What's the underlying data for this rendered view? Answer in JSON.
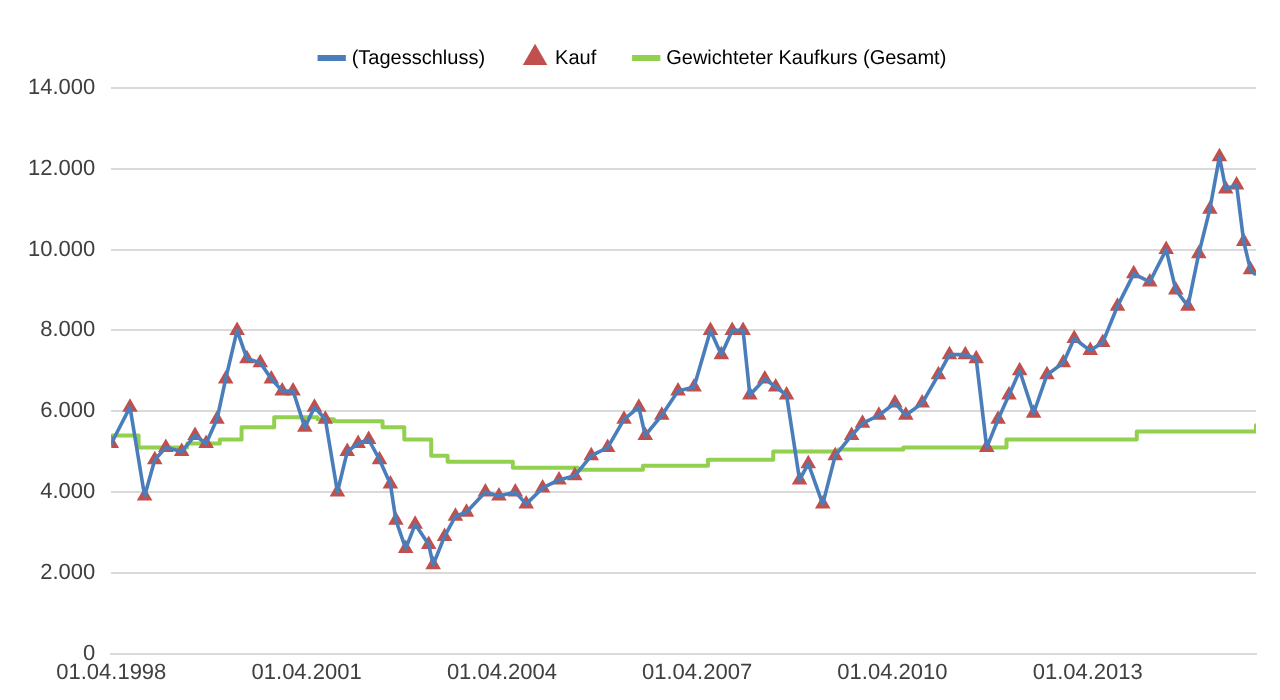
{
  "chart_data": {
    "type": "line",
    "legend": "top",
    "grid": "y",
    "line_style": "solid",
    "x": [
      "1998-04-01",
      "1998-07-15",
      "1998-10-05",
      "1998-12-01",
      "1999-02-01",
      "1999-05-01",
      "1999-07-15",
      "1999-09-15",
      "1999-11-15",
      "2000-01-03",
      "2000-03-07",
      "2000-05-01",
      "2000-07-15",
      "2000-09-15",
      "2000-11-15",
      "2001-01-15",
      "2001-03-22",
      "2001-05-15",
      "2001-07-15",
      "2001-09-21",
      "2001-11-15",
      "2002-01-15",
      "2002-03-15",
      "2002-05-15",
      "2002-07-15",
      "2002-08-15",
      "2002-10-09",
      "2002-12-01",
      "2003-02-15",
      "2003-03-12",
      "2003-05-15",
      "2003-07-15",
      "2003-09-15",
      "2003-12-30",
      "2004-03-15",
      "2004-06-15",
      "2004-08-15",
      "2004-11-15",
      "2005-02-15",
      "2005-05-15",
      "2005-08-15",
      "2005-11-15",
      "2006-02-15",
      "2006-05-09",
      "2006-06-14",
      "2006-09-15",
      "2006-12-15",
      "2007-03-15",
      "2007-06-15",
      "2007-08-15",
      "2007-10-15",
      "2007-12-15",
      "2008-01-22",
      "2008-04-15",
      "2008-06-15",
      "2008-08-15",
      "2008-10-27",
      "2008-12-15",
      "2009-03-06",
      "2009-05-15",
      "2009-08-15",
      "2009-10-15",
      "2010-01-15",
      "2010-04-15",
      "2010-06-15",
      "2010-09-15",
      "2010-12-15",
      "2011-02-15",
      "2011-05-15",
      "2011-07-15",
      "2011-09-12",
      "2011-11-15",
      "2012-01-15",
      "2012-03-15",
      "2012-06-01",
      "2012-08-15",
      "2012-11-15",
      "2013-01-15",
      "2013-04-15",
      "2013-06-24",
      "2013-09-15",
      "2013-12-15",
      "2014-03-15",
      "2014-06-15",
      "2014-08-08",
      "2014-10-15",
      "2014-12-15",
      "2015-02-15",
      "2015-04-10",
      "2015-05-15",
      "2015-07-15",
      "2015-08-24",
      "2015-10-01",
      "2015-10-25"
    ],
    "series": [
      {
        "name": "(Tagesschluss)",
        "color": "#4a7ebb",
        "marker": "none",
        "values": [
          5200,
          6100,
          3900,
          4800,
          5100,
          5000,
          5400,
          5200,
          5800,
          6800,
          8000,
          7300,
          7200,
          6800,
          6500,
          6500,
          5600,
          6100,
          5800,
          4000,
          5000,
          5200,
          5300,
          4800,
          4200,
          3300,
          2600,
          3200,
          2700,
          2200,
          2900,
          3400,
          3500,
          4000,
          3900,
          4000,
          3700,
          4100,
          4300,
          4400,
          4900,
          5100,
          5800,
          6100,
          5400,
          5900,
          6500,
          6600,
          8000,
          7400,
          8000,
          8000,
          6400,
          6800,
          6600,
          6400,
          4300,
          4700,
          3700,
          4900,
          5400,
          5700,
          5900,
          6200,
          5900,
          6200,
          6900,
          7400,
          7400,
          7300,
          5100,
          5800,
          6400,
          7000,
          5950,
          6900,
          7200,
          7800,
          7500,
          7700,
          8600,
          9400,
          9200,
          10000,
          9000,
          8600,
          9900,
          11000,
          12300,
          11500,
          11600,
          10200,
          9500,
          9400
        ]
      },
      {
        "name": "Kauf",
        "type": "scatter",
        "color": "#c0504d",
        "marker": "triangle",
        "values": [
          5200,
          6100,
          3900,
          4800,
          5100,
          5000,
          5400,
          5200,
          5800,
          6800,
          8000,
          7300,
          7200,
          6800,
          6500,
          6500,
          5600,
          6100,
          5800,
          4000,
          5000,
          5200,
          5300,
          4800,
          4200,
          3300,
          2600,
          3200,
          2700,
          2200,
          2900,
          3400,
          3500,
          4000,
          3900,
          4000,
          3700,
          4100,
          4300,
          4400,
          4900,
          5100,
          5800,
          6100,
          5400,
          5900,
          6500,
          6600,
          8000,
          7400,
          8000,
          8000,
          6400,
          6800,
          6600,
          6400,
          4300,
          4700,
          3700,
          4900,
          5400,
          5700,
          5900,
          6200,
          5900,
          6200,
          6900,
          7400,
          7400,
          7300,
          5100,
          5800,
          6400,
          7000,
          5950,
          6900,
          7200,
          7800,
          7500,
          7700,
          8600,
          9400,
          9200,
          10000,
          9000,
          8600,
          9900,
          11000,
          12300,
          11500,
          11600,
          10200,
          9500,
          null
        ]
      },
      {
        "name": "Gewichteter Kaufkurs (Gesamt)",
        "type": "step",
        "color": "#92d050",
        "marker": "none",
        "x": [
          "1998-04-01",
          "1998-09-01",
          "1999-06-01",
          "1999-12-01",
          "2000-04-01",
          "2000-10-01",
          "2001-06-01",
          "2001-09-01",
          "2002-06-01",
          "2002-10-01",
          "2003-03-01",
          "2003-06-01",
          "2004-06-01",
          "2005-06-01",
          "2006-06-01",
          "2007-06-01",
          "2008-06-01",
          "2009-06-01",
          "2010-06-01",
          "2012-01-01",
          "2014-01-01",
          "2015-11-01"
        ],
        "values": [
          5400,
          5100,
          5200,
          5300,
          5600,
          5850,
          5800,
          5750,
          5600,
          5300,
          4900,
          4750,
          4600,
          4550,
          4650,
          4800,
          5000,
          5050,
          5100,
          5300,
          5500,
          5650
        ]
      }
    ],
    "xlim": [
      "1998-04-01",
      "2015-11-01"
    ],
    "xticks": [
      {
        "value": "1998-04-01",
        "label": "01.04.1998"
      },
      {
        "value": "2001-04-01",
        "label": "01.04.2001"
      },
      {
        "value": "2004-04-01",
        "label": "01.04.2004"
      },
      {
        "value": "2007-04-01",
        "label": "01.04.2007"
      },
      {
        "value": "2010-04-01",
        "label": "01.04.2010"
      },
      {
        "value": "2013-04-01",
        "label": "01.04.2013"
      }
    ],
    "ylim": [
      0,
      14000
    ],
    "yticks": [
      0,
      {
        "value": 2000,
        "label": "2.000"
      },
      {
        "value": 4000,
        "label": "4.000"
      },
      {
        "value": 6000,
        "label": "6.000"
      },
      {
        "value": 8000,
        "label": "8.000"
      },
      {
        "value": 10000,
        "label": "10.000"
      },
      {
        "value": 12000,
        "label": "12.000"
      },
      {
        "value": 14000,
        "label": "14.000"
      }
    ]
  }
}
